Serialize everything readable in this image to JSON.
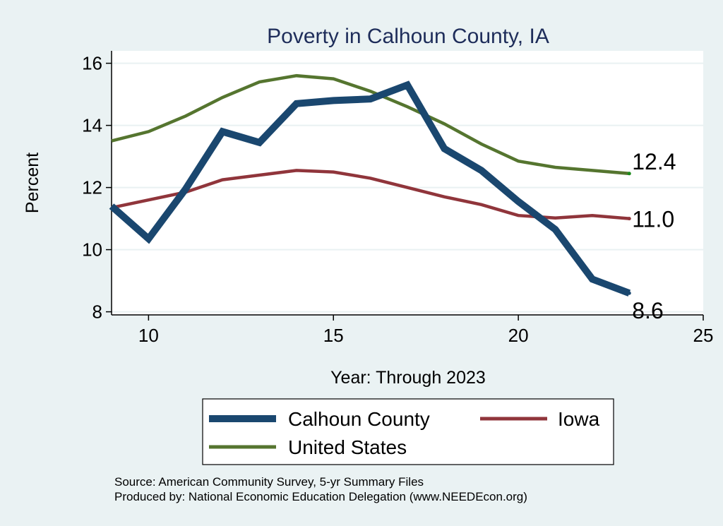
{
  "chart_data": {
    "type": "line",
    "title": "Poverty in Calhoun County, IA",
    "xlabel": "Year: Through 2023",
    "ylabel": "Percent",
    "xlim": [
      9,
      25
    ],
    "ylim": [
      7.9,
      16.4
    ],
    "xticks": [
      10,
      15,
      20,
      25
    ],
    "yticks": [
      8,
      10,
      12,
      14,
      16
    ],
    "grid": true,
    "series": [
      {
        "name": "Calhoun County",
        "color": "#1a476f",
        "x": [
          9,
          10,
          11,
          12,
          13,
          14,
          15,
          16,
          17,
          18,
          19,
          20,
          21,
          22,
          23
        ],
        "values": [
          11.4,
          10.35,
          11.95,
          13.8,
          13.45,
          14.7,
          14.8,
          14.85,
          15.3,
          13.25,
          12.55,
          11.55,
          10.65,
          9.05,
          8.6
        ],
        "end_label": "8.6"
      },
      {
        "name": "Iowa",
        "color": "#90353b",
        "x": [
          9,
          10,
          11,
          12,
          13,
          14,
          15,
          16,
          17,
          18,
          19,
          20,
          21,
          22,
          23
        ],
        "values": [
          11.35,
          11.6,
          11.85,
          12.25,
          12.4,
          12.55,
          12.5,
          12.3,
          12.0,
          11.7,
          11.45,
          11.1,
          11.02,
          11.1,
          11.0
        ],
        "end_label": "11.0"
      },
      {
        "name": "United States",
        "color": "#55752f",
        "x": [
          9,
          10,
          11,
          12,
          13,
          14,
          15,
          16,
          17,
          18,
          19,
          20,
          21,
          22,
          23
        ],
        "values": [
          13.5,
          13.8,
          14.3,
          14.9,
          15.4,
          15.6,
          15.5,
          15.1,
          14.6,
          14.05,
          13.4,
          12.85,
          12.65,
          12.55,
          12.45
        ],
        "end_label": "12.4"
      }
    ],
    "legend_position": "bottom",
    "source": "Source: American Community Survey, 5-yr Summary Files",
    "produced_by": "Produced by: National Economic Education Delegation (www.NEEDEcon.org)"
  }
}
